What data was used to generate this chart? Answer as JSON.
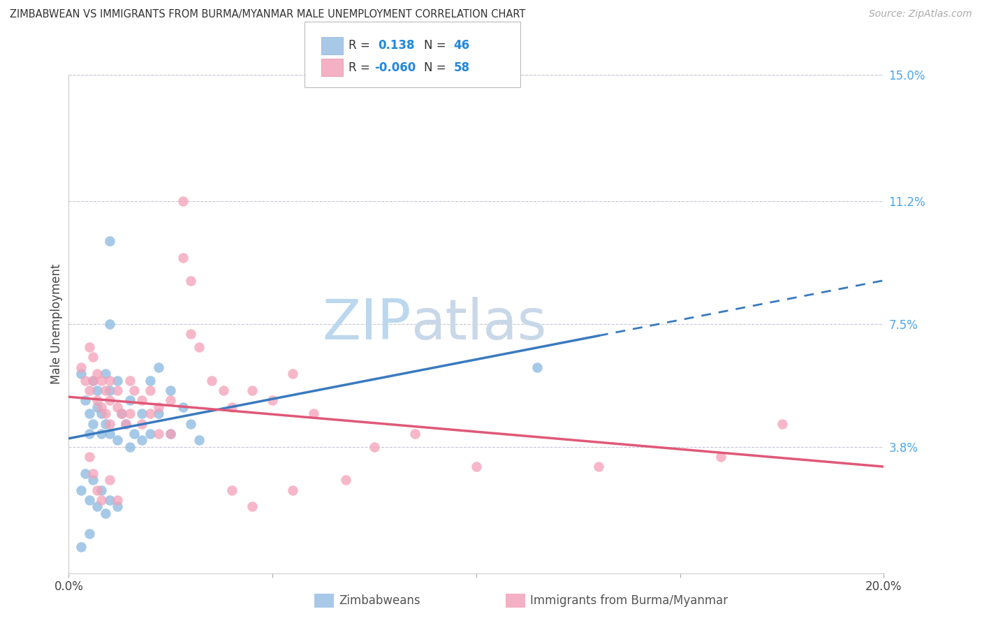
{
  "title": "ZIMBABWEAN VS IMMIGRANTS FROM BURMA/MYANMAR MALE UNEMPLOYMENT CORRELATION CHART",
  "source": "Source: ZipAtlas.com",
  "ylabel": "Male Unemployment",
  "x_min": 0.0,
  "x_max": 0.2,
  "y_min": 0.0,
  "y_max": 0.15,
  "x_tick_positions": [
    0.0,
    0.05,
    0.1,
    0.15,
    0.2
  ],
  "x_tick_labels": [
    "0.0%",
    "",
    "",
    "",
    "20.0%"
  ],
  "y_tick_vals_right": [
    0.15,
    0.112,
    0.075,
    0.038
  ],
  "y_tick_labels_right": [
    "15.0%",
    "11.2%",
    "7.5%",
    "3.8%"
  ],
  "R_zimbabwean": 0.138,
  "N_zimbabwean": 46,
  "R_burma": -0.06,
  "N_burma": 58,
  "blue_color": "#88b8e0",
  "pink_color": "#f4a0b8",
  "trend_blue": "#3a7abf",
  "trend_pink": "#e05878",
  "watermark_zip_color": "#c8dff0",
  "watermark_atlas_color": "#c0d0e8",
  "background_color": "#ffffff",
  "grid_color": "#c8c8d8",
  "figsize": [
    14.06,
    8.92
  ],
  "blue_points": [
    [
      0.003,
      0.06
    ],
    [
      0.004,
      0.052
    ],
    [
      0.005,
      0.048
    ],
    [
      0.005,
      0.042
    ],
    [
      0.006,
      0.058
    ],
    [
      0.006,
      0.045
    ],
    [
      0.007,
      0.055
    ],
    [
      0.007,
      0.05
    ],
    [
      0.008,
      0.048
    ],
    [
      0.008,
      0.042
    ],
    [
      0.009,
      0.06
    ],
    [
      0.009,
      0.045
    ],
    [
      0.01,
      0.1
    ],
    [
      0.01,
      0.075
    ],
    [
      0.01,
      0.055
    ],
    [
      0.01,
      0.042
    ],
    [
      0.012,
      0.058
    ],
    [
      0.012,
      0.04
    ],
    [
      0.013,
      0.048
    ],
    [
      0.014,
      0.045
    ],
    [
      0.015,
      0.052
    ],
    [
      0.015,
      0.038
    ],
    [
      0.016,
      0.042
    ],
    [
      0.018,
      0.048
    ],
    [
      0.018,
      0.04
    ],
    [
      0.02,
      0.058
    ],
    [
      0.02,
      0.042
    ],
    [
      0.022,
      0.062
    ],
    [
      0.022,
      0.048
    ],
    [
      0.025,
      0.055
    ],
    [
      0.025,
      0.042
    ],
    [
      0.028,
      0.05
    ],
    [
      0.03,
      0.045
    ],
    [
      0.032,
      0.04
    ],
    [
      0.003,
      0.025
    ],
    [
      0.004,
      0.03
    ],
    [
      0.005,
      0.022
    ],
    [
      0.006,
      0.028
    ],
    [
      0.007,
      0.02
    ],
    [
      0.008,
      0.025
    ],
    [
      0.009,
      0.018
    ],
    [
      0.01,
      0.022
    ],
    [
      0.012,
      0.02
    ],
    [
      0.115,
      0.062
    ],
    [
      0.003,
      0.008
    ],
    [
      0.005,
      0.012
    ]
  ],
  "pink_points": [
    [
      0.003,
      0.062
    ],
    [
      0.004,
      0.058
    ],
    [
      0.005,
      0.068
    ],
    [
      0.005,
      0.055
    ],
    [
      0.006,
      0.065
    ],
    [
      0.006,
      0.058
    ],
    [
      0.007,
      0.06
    ],
    [
      0.007,
      0.052
    ],
    [
      0.008,
      0.058
    ],
    [
      0.008,
      0.05
    ],
    [
      0.009,
      0.055
    ],
    [
      0.009,
      0.048
    ],
    [
      0.01,
      0.058
    ],
    [
      0.01,
      0.052
    ],
    [
      0.01,
      0.045
    ],
    [
      0.012,
      0.055
    ],
    [
      0.012,
      0.05
    ],
    [
      0.013,
      0.048
    ],
    [
      0.014,
      0.045
    ],
    [
      0.015,
      0.058
    ],
    [
      0.015,
      0.048
    ],
    [
      0.016,
      0.055
    ],
    [
      0.018,
      0.052
    ],
    [
      0.018,
      0.045
    ],
    [
      0.02,
      0.055
    ],
    [
      0.02,
      0.048
    ],
    [
      0.022,
      0.05
    ],
    [
      0.022,
      0.042
    ],
    [
      0.025,
      0.052
    ],
    [
      0.025,
      0.042
    ],
    [
      0.028,
      0.112
    ],
    [
      0.028,
      0.095
    ],
    [
      0.03,
      0.088
    ],
    [
      0.03,
      0.072
    ],
    [
      0.032,
      0.068
    ],
    [
      0.035,
      0.058
    ],
    [
      0.038,
      0.055
    ],
    [
      0.04,
      0.05
    ],
    [
      0.045,
      0.055
    ],
    [
      0.05,
      0.052
    ],
    [
      0.055,
      0.06
    ],
    [
      0.06,
      0.048
    ],
    [
      0.075,
      0.038
    ],
    [
      0.085,
      0.042
    ],
    [
      0.1,
      0.032
    ],
    [
      0.13,
      0.032
    ],
    [
      0.16,
      0.035
    ],
    [
      0.175,
      0.045
    ],
    [
      0.055,
      0.025
    ],
    [
      0.068,
      0.028
    ],
    [
      0.005,
      0.035
    ],
    [
      0.006,
      0.03
    ],
    [
      0.007,
      0.025
    ],
    [
      0.008,
      0.022
    ],
    [
      0.01,
      0.028
    ],
    [
      0.012,
      0.022
    ],
    [
      0.04,
      0.025
    ],
    [
      0.045,
      0.02
    ]
  ]
}
